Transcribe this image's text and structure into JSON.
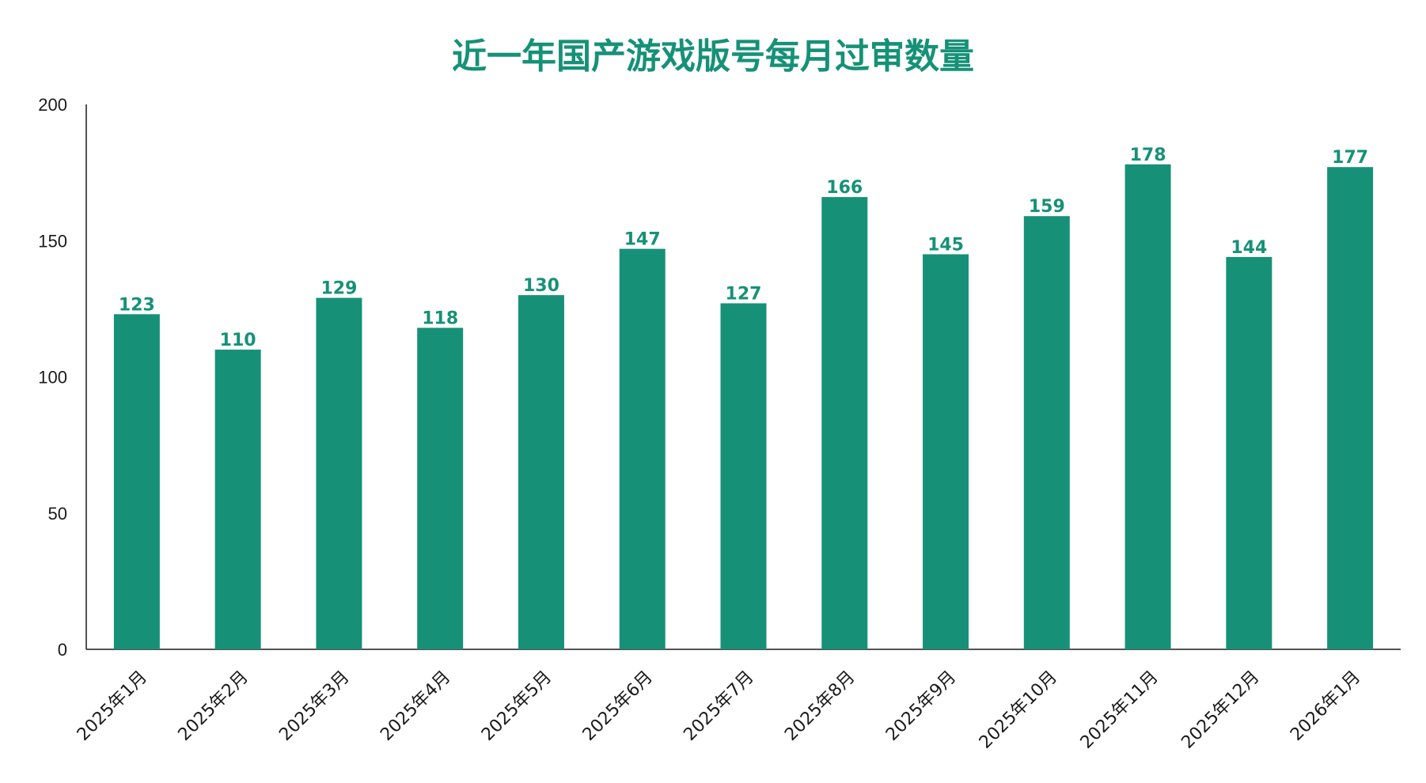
{
  "chart_data": {
    "type": "bar",
    "title": "近一年国产游戏版号每月过审数量",
    "categories": [
      "2025年1月",
      "2025年2月",
      "2025年3月",
      "2025年4月",
      "2025年5月",
      "2025年6月",
      "2025年7月",
      "2025年8月",
      "2025年9月",
      "2025年10月",
      "2025年11月",
      "2025年12月",
      "2026年1月"
    ],
    "values": [
      123,
      110,
      129,
      118,
      130,
      147,
      127,
      166,
      145,
      159,
      178,
      144,
      177
    ],
    "data_labels": [
      "123",
      "110",
      "129",
      "118",
      "130",
      "147",
      "127",
      "166",
      "145",
      "159",
      "178",
      "144",
      "177"
    ],
    "y_ticks": [
      "0",
      "50",
      "100",
      "150",
      "200"
    ],
    "ylim": [
      0,
      200
    ],
    "xlabel": "",
    "ylabel": "",
    "grid": false,
    "legend": "none",
    "colors": {
      "bar": "#169177",
      "title": "#169177",
      "data_label": "#169177",
      "axis": "#1a1a1a"
    }
  }
}
